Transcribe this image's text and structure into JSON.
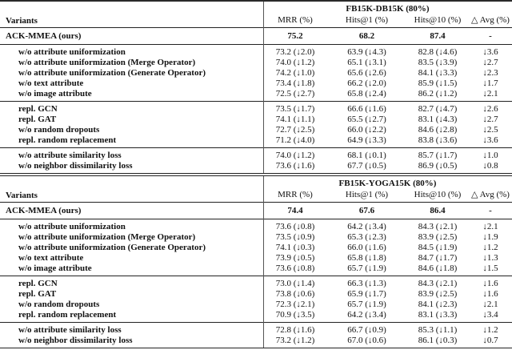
{
  "tables": [
    {
      "dataset_header": "FB15K-DB15K (80%)",
      "variants_label": "Variants",
      "columns": [
        "MRR (%)",
        "Hits@1 (%)",
        "Hits@10 (%)",
        "△ Avg (%)"
      ],
      "main_row": {
        "label": "ACK-MMEA (ours)",
        "values": [
          "75.2",
          "68.2",
          "87.4",
          "-"
        ]
      },
      "sections": [
        {
          "rows": [
            {
              "label": "w/o attribute uniformization",
              "values": [
                "73.2 (↓2.0)",
                "63.9 (↓4.3)",
                "82.8 (↓4.6)",
                "↓3.6"
              ]
            },
            {
              "label": "w/o attribute uniformization (Merge Operator)",
              "values": [
                "74.0 (↓1.2)",
                "65.1 (↓3.1)",
                "83.5 (↓3.9)",
                "↓2.7"
              ]
            },
            {
              "label": "w/o attribute uniformization (Generate Operator)",
              "values": [
                "74.2 (↓1.0)",
                "65.6 (↓2.6)",
                "84.1 (↓3.3)",
                "↓2.3"
              ]
            },
            {
              "label": "w/o text attribute",
              "values": [
                "73.4 (↓1.8)",
                "66.2 (↓2.0)",
                "85.9 (↓1.5)",
                "↓1.7"
              ]
            },
            {
              "label": "w/o image attribute",
              "values": [
                "72.5 (↓2.7)",
                "65.8 (↓2.4)",
                "86.2 (↓1.2)",
                "↓2.1"
              ]
            }
          ]
        },
        {
          "rows": [
            {
              "label": "repl. GCN",
              "values": [
                "73.5 (↓1.7)",
                "66.6 (↓1.6)",
                "82.7 (↓4.7)",
                "↓2.6"
              ]
            },
            {
              "label": "repl. GAT",
              "values": [
                "74.1 (↓1.1)",
                "65.5 (↓2.7)",
                "83.1 (↓4.3)",
                "↓2.7"
              ]
            },
            {
              "label": "w/o random dropouts",
              "values": [
                "72.7 (↓2.5)",
                "66.0 (↓2.2)",
                "84.6 (↓2.8)",
                "↓2.5"
              ]
            },
            {
              "label": "repl. random replacement",
              "values": [
                "71.2 (↓4.0)",
                "64.9 (↓3.3)",
                "83.8 (↓3.6)",
                "↓3.6"
              ]
            }
          ]
        },
        {
          "rows": [
            {
              "label": "w/o attribute similarity loss",
              "values": [
                "74.0 (↓1.2)",
                "68.1 (↓0.1)",
                "85.7 (↓1.7)",
                "↓1.0"
              ]
            },
            {
              "label": "w/o neighbor dissimilarity loss",
              "values": [
                "73.6 (↓1.6)",
                "67.7 (↓0.5)",
                "86.9 (↓0.5)",
                "↓0.8"
              ]
            }
          ]
        }
      ]
    },
    {
      "dataset_header": "FB15K-YOGA15K (80%)",
      "variants_label": "Variants",
      "columns": [
        "MRR (%)",
        "Hits@1 (%)",
        "Hits@10 (%)",
        "△ Avg (%)"
      ],
      "main_row": {
        "label": "ACK-MMEA (ours)",
        "values": [
          "74.4",
          "67.6",
          "86.4",
          "-"
        ]
      },
      "sections": [
        {
          "rows": [
            {
              "label": "w/o attribute uniformization",
              "values": [
                "73.6 (↓0.8)",
                "64.2 (↓3.4)",
                "84.3 (↓2.1)",
                "↓2.1"
              ]
            },
            {
              "label": "w/o attribute uniformization (Merge Operator)",
              "values": [
                "73.5 (↓0.9)",
                "65.3 (↓2.3)",
                "83.9 (↓2.5)",
                "↓1.9"
              ]
            },
            {
              "label": "w/o attribute uniformization (Generate Operator)",
              "values": [
                "74.1 (↓0.3)",
                "66.0 (↓1.6)",
                "84.5 (↓1.9)",
                "↓1.2"
              ]
            },
            {
              "label": "w/o text attribute",
              "values": [
                "73.9 (↓0.5)",
                "65.8 (↓1.8)",
                "84.7 (↓1.7)",
                "↓1.3"
              ]
            },
            {
              "label": "w/o image attribute",
              "values": [
                "73.6 (↓0.8)",
                "65.7 (↓1.9)",
                "84.6 (↓1.8)",
                "↓1.5"
              ]
            }
          ]
        },
        {
          "rows": [
            {
              "label": "repl. GCN",
              "values": [
                "73.0 (↓1.4)",
                "66.3 (↓1.3)",
                "84.3 (↓2.1)",
                "↓1.6"
              ]
            },
            {
              "label": "repl. GAT",
              "values": [
                "73.8 (↓0.6)",
                "65.9 (↓1.7)",
                "83.9 (↓2.5)",
                "↓1.6"
              ]
            },
            {
              "label": "w/o random dropouts",
              "values": [
                "72.3 (↓2.1)",
                "65.7 (↓1.9)",
                "84.1 (↓2.3)",
                "↓2.1"
              ]
            },
            {
              "label": "repl. random replacement",
              "values": [
                "70.9 (↓3.5)",
                "64.2 (↓3.4)",
                "83.1 (↓3.3)",
                "↓3.4"
              ]
            }
          ]
        },
        {
          "rows": [
            {
              "label": "w/o attribute similarity loss",
              "values": [
                "72.8 (↓1.6)",
                "66.7 (↓0.9)",
                "85.3 (↓1.1)",
                "↓1.2"
              ]
            },
            {
              "label": "w/o neighbor dissimilarity loss",
              "values": [
                "73.2 (↓1.2)",
                "67.0 (↓0.6)",
                "86.1 (↓0.3)",
                "↓0.7"
              ]
            }
          ]
        }
      ]
    }
  ]
}
